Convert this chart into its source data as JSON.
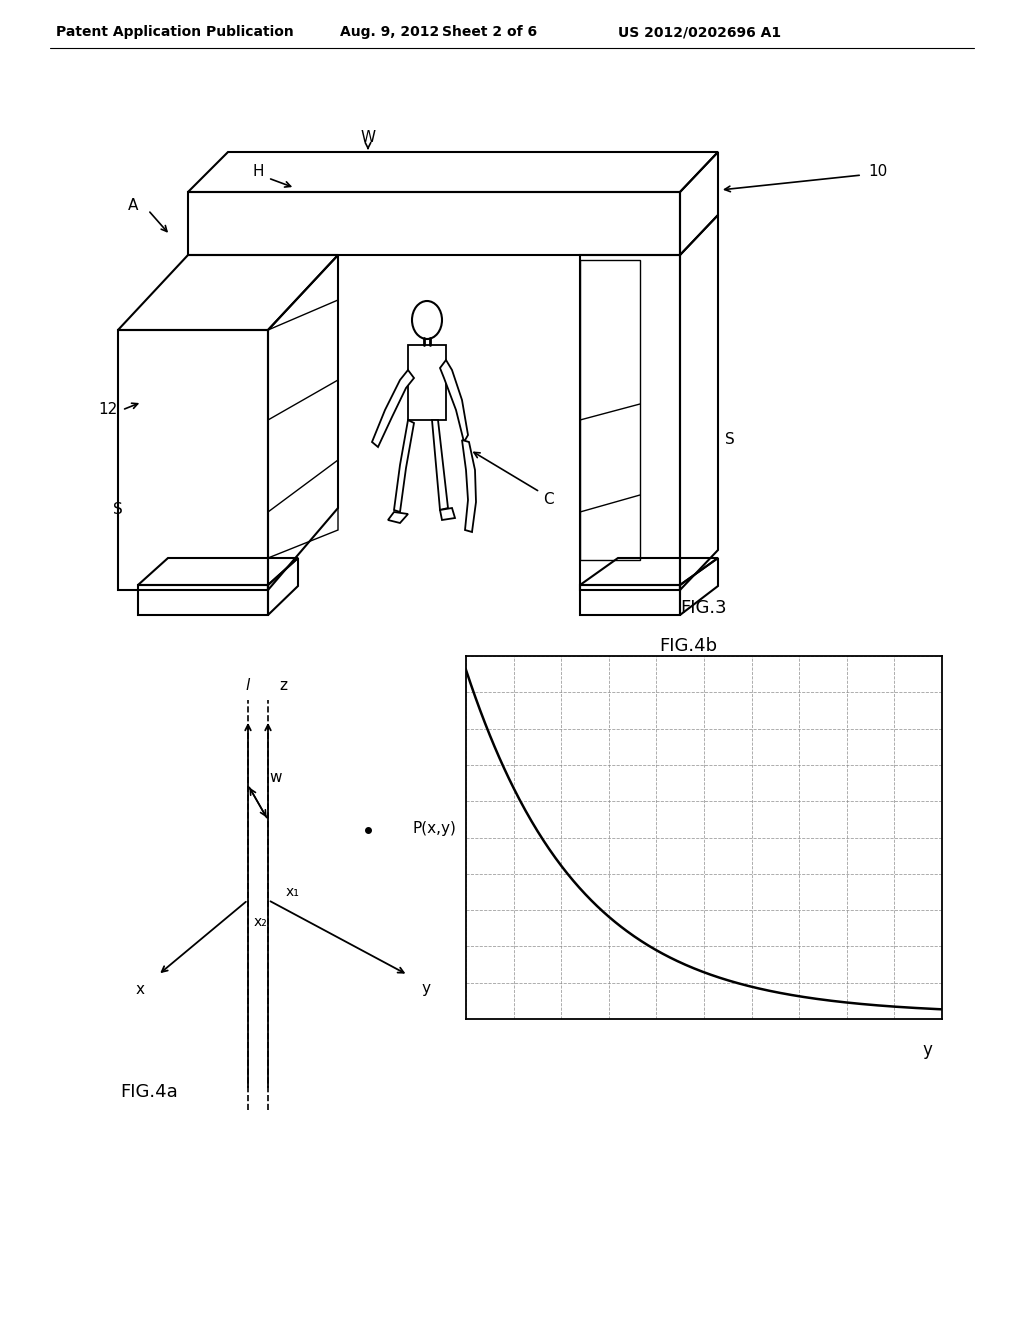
{
  "bg_color": "#ffffff",
  "header_text": "Patent Application Publication",
  "header_date": "Aug. 9, 2012",
  "header_sheet": "Sheet 2 of 6",
  "header_patent": "US 2012/0202696 A1",
  "fig3_label": "FIG.3",
  "fig4a_label": "FIG.4a",
  "fig4b_label": "FIG.4b",
  "line_color": "#000000"
}
